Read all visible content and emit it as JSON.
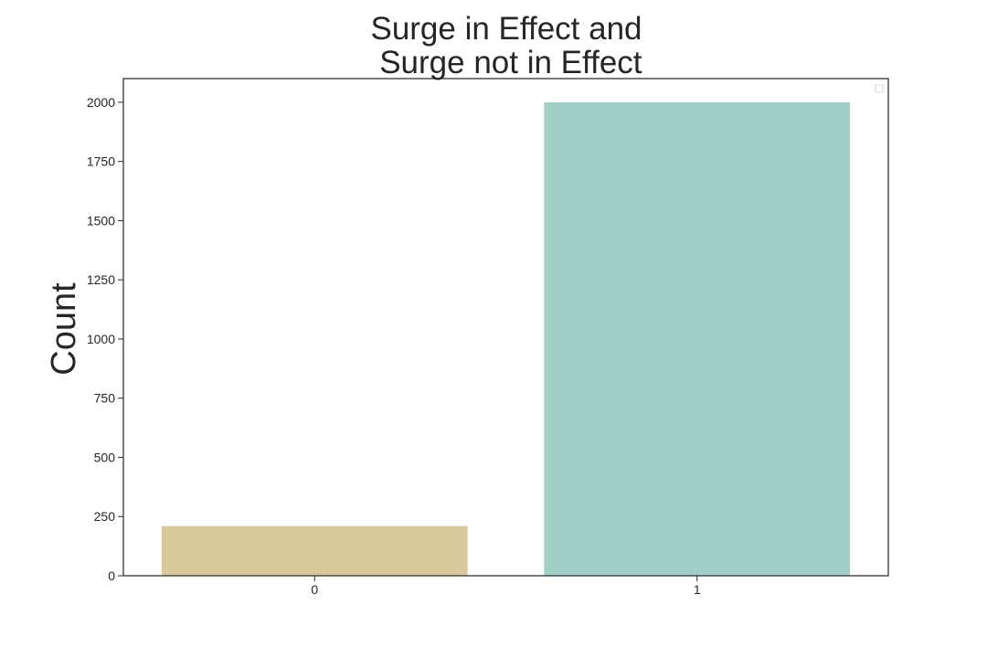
{
  "chart_data": {
    "type": "bar",
    "title_lines": [
      "Surge in Effect and",
      " Surge not in Effect"
    ],
    "xlabel": "",
    "ylabel": "Count",
    "categories": [
      "0",
      "1"
    ],
    "values": [
      210,
      2000
    ],
    "bar_colors": [
      "#d9c99a",
      "#a2cec8"
    ],
    "ylim": [
      0,
      2100
    ],
    "yticks": [
      0,
      250,
      500,
      750,
      1000,
      1250,
      1500,
      1750,
      2000
    ],
    "ytick_labels": [
      "0",
      "250",
      "500",
      "750",
      "1000",
      "1250",
      "1500",
      "1750",
      "2000"
    ],
    "grid": false,
    "legend": {
      "placement": "upper right",
      "entries": []
    }
  }
}
